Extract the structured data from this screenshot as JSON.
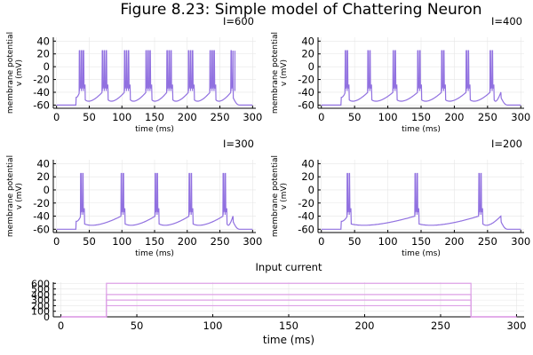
{
  "figure": {
    "title": "Figure 8.23: Simple model of Chattering Neuron"
  },
  "chart_data": [
    {
      "type": "line",
      "title": "I=600",
      "xlabel": "time (ms)",
      "ylabel_line1": "membrane potential",
      "ylabel_line2": "v (mV)",
      "xlim": [
        -5,
        305
      ],
      "ylim": [
        -65,
        46
      ],
      "xticks": [
        "0",
        "50",
        "100",
        "150",
        "200",
        "250",
        "300"
      ],
      "yticks": [
        "40",
        "20",
        "0",
        "-20",
        "-40",
        "-60"
      ],
      "xtick_values": [
        0,
        50,
        100,
        150,
        200,
        250,
        300
      ],
      "ytick_values": [
        40,
        20,
        0,
        -20,
        -40,
        -60
      ],
      "color": "#9171e0",
      "rest_potential": -60,
      "spike_peak": 25,
      "stim_window_ms": [
        30,
        270
      ],
      "burst_times_ms": [
        35,
        70,
        104,
        137,
        169,
        202,
        235,
        267
      ],
      "spikes_per_burst": 3
    },
    {
      "type": "line",
      "title": "I=400",
      "xlabel": "time (ms)",
      "ylabel_line1": "membrane potential",
      "ylabel_line2": "v (mV)",
      "xlim": [
        -5,
        305
      ],
      "ylim": [
        -65,
        46
      ],
      "xticks": [
        "0",
        "50",
        "100",
        "150",
        "200",
        "250",
        "300"
      ],
      "yticks": [
        "40",
        "20",
        "0",
        "-20",
        "-40",
        "-60"
      ],
      "xtick_values": [
        0,
        50,
        100,
        150,
        200,
        250,
        300
      ],
      "ytick_values": [
        40,
        20,
        0,
        -20,
        -40,
        -60
      ],
      "color": "#9171e0",
      "rest_potential": -60,
      "spike_peak": 25,
      "stim_window_ms": [
        30,
        270
      ],
      "burst_times_ms": [
        36,
        70,
        108,
        145,
        181,
        218,
        254
      ],
      "spikes_per_burst": 2
    },
    {
      "type": "line",
      "title": "I=300",
      "xlabel": "time (ms)",
      "ylabel_line1": "membrane potential",
      "ylabel_line2": "v (mV)",
      "xlim": [
        -5,
        305
      ],
      "ylim": [
        -65,
        46
      ],
      "xticks": [
        "0",
        "50",
        "100",
        "150",
        "200",
        "250",
        "300"
      ],
      "yticks": [
        "40",
        "20",
        "0",
        "-20",
        "-40",
        "-60"
      ],
      "xtick_values": [
        0,
        50,
        100,
        150,
        200,
        250,
        300
      ],
      "ytick_values": [
        40,
        20,
        0,
        -20,
        -40,
        -60
      ],
      "color": "#9171e0",
      "rest_potential": -60,
      "spike_peak": 25,
      "stim_window_ms": [
        30,
        270
      ],
      "burst_times_ms": [
        37,
        99,
        151,
        203,
        255
      ],
      "spikes_per_burst": 2
    },
    {
      "type": "line",
      "title": "I=200",
      "xlabel": "time (ms)",
      "ylabel_line1": "membrane potential",
      "ylabel_line2": "v (mV)",
      "xlim": [
        -5,
        305
      ],
      "ylim": [
        -65,
        46
      ],
      "xticks": [
        "0",
        "50",
        "100",
        "150",
        "200",
        "250",
        "300"
      ],
      "yticks": [
        "40",
        "20",
        "0",
        "-20",
        "-40",
        "-60"
      ],
      "xtick_values": [
        0,
        50,
        100,
        150,
        200,
        250,
        300
      ],
      "ytick_values": [
        40,
        20,
        0,
        -20,
        -40,
        -60
      ],
      "color": "#9171e0",
      "rest_potential": -60,
      "spike_peak": 25,
      "stim_window_ms": [
        30,
        270
      ],
      "burst_times_ms": [
        39,
        141,
        237
      ],
      "spikes_per_burst": 2
    },
    {
      "type": "line",
      "title": "Input current",
      "xlabel": "time (ms)",
      "xlim": [
        -5,
        305
      ],
      "ylim": [
        0,
        620
      ],
      "xticks": [
        "0",
        "50",
        "100",
        "150",
        "200",
        "250",
        "300"
      ],
      "yticks": [
        "600",
        "500",
        "400",
        "300",
        "200",
        "100",
        "0"
      ],
      "xtick_values": [
        0,
        50,
        100,
        150,
        200,
        250,
        300
      ],
      "ytick_values": [
        600,
        500,
        400,
        300,
        200,
        100,
        0
      ],
      "color": "#dda0e6",
      "step_window_ms": [
        30,
        270
      ],
      "series": [
        {
          "value": 600
        },
        {
          "value": 400
        },
        {
          "value": 300
        },
        {
          "value": 200
        }
      ]
    }
  ]
}
